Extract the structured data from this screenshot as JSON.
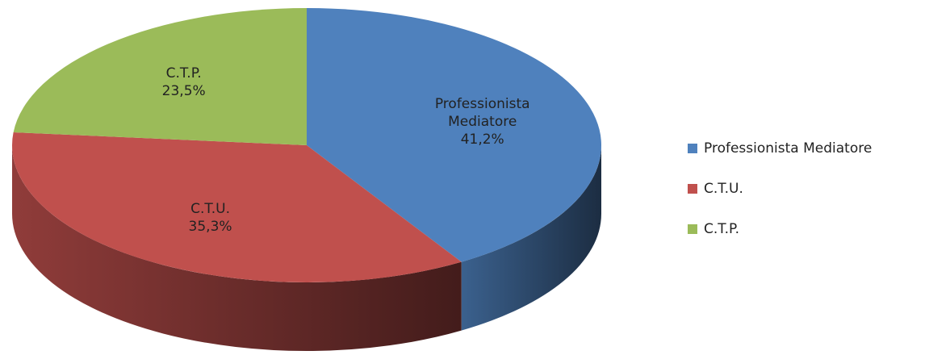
{
  "chart_data": {
    "type": "pie",
    "categories": [
      "Professionista Mediatore",
      "C.T.U.",
      "C.T.P."
    ],
    "values": [
      41.2,
      35.3,
      23.5
    ],
    "value_labels": [
      "41,2%",
      "35,3%",
      "23,5%"
    ],
    "colors": [
      "#4f81bd",
      "#c0504d",
      "#9bbb59"
    ],
    "legend": "right"
  }
}
